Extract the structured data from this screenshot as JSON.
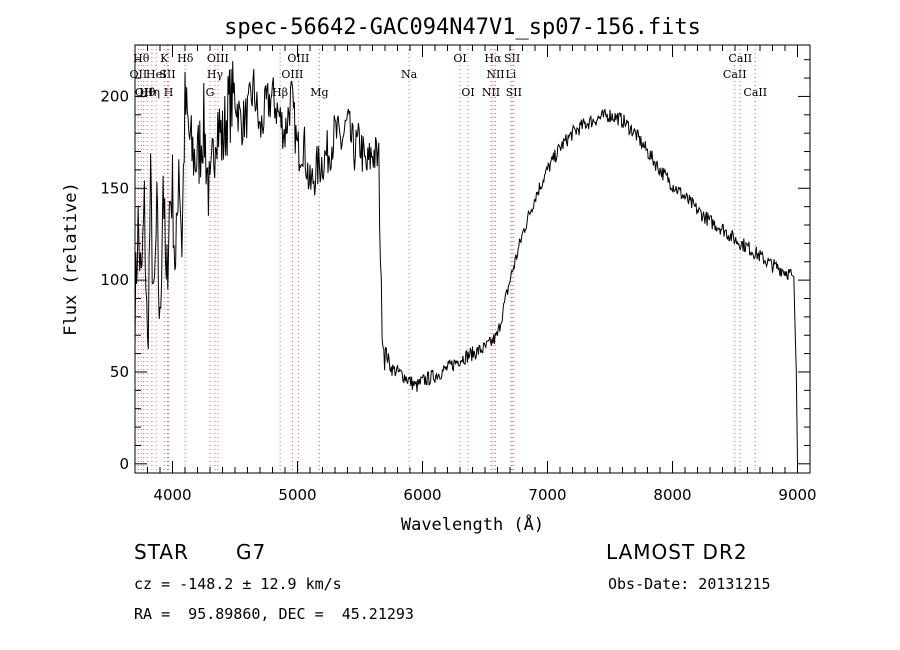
{
  "chart_data": {
    "type": "line",
    "title": "spec-56642-GAC094N47V1_sp07-156.fits",
    "xlabel": "Wavelength (Å)",
    "ylabel": "Flux (relative)",
    "xlim": [
      3700,
      9100
    ],
    "ylim": [
      -5,
      228
    ],
    "x_ticks": [
      4000,
      5000,
      6000,
      7000,
      8000,
      9000
    ],
    "y_ticks": [
      0,
      50,
      100,
      150,
      200
    ],
    "grid": false,
    "line_color": "#000000",
    "marker_color": "#e06060",
    "series": [
      {
        "x": [
          3700,
          3725,
          3750,
          3775,
          3800,
          3825,
          3850,
          3875,
          3900,
          3925,
          3950,
          3975,
          4000,
          4025,
          4050,
          4075,
          4100,
          4150,
          4200,
          4250,
          4300,
          4350,
          4400,
          4450,
          4500,
          4550,
          4600,
          4650,
          4700,
          4750,
          4800,
          4850,
          4900,
          4950,
          5000,
          5050,
          5100,
          5150,
          5200,
          5250,
          5300,
          5350,
          5400,
          5450,
          5500,
          5550,
          5600,
          5650,
          5670,
          5690,
          5710,
          5750,
          5800,
          5850,
          5900,
          5950,
          6000,
          6100,
          6200,
          6300,
          6400,
          6500,
          6550,
          6600,
          6650,
          6700,
          6800,
          6900,
          7000,
          7100,
          7200,
          7300,
          7400,
          7500,
          7600,
          7700,
          7800,
          7900,
          8000,
          8100,
          8200,
          8300,
          8400,
          8500,
          8600,
          8700,
          8800,
          8900,
          8970,
          8990,
          9000
        ],
        "y": [
          85,
          130,
          95,
          140,
          60,
          150,
          80,
          135,
          70,
          160,
          90,
          140,
          150,
          100,
          170,
          120,
          195,
          170,
          165,
          185,
          140,
          190,
          175,
          195,
          200,
          185,
          190,
          205,
          180,
          195,
          200,
          190,
          180,
          200,
          170,
          175,
          150,
          160,
          165,
          170,
          180,
          175,
          185,
          170,
          175,
          160,
          170,
          165,
          90,
          65,
          60,
          52,
          50,
          48,
          45,
          42,
          45,
          48,
          52,
          57,
          60,
          63,
          66,
          70,
          85,
          100,
          125,
          145,
          160,
          172,
          180,
          185,
          188,
          190,
          187,
          180,
          170,
          160,
          152,
          145,
          138,
          132,
          128,
          122,
          118,
          113,
          108,
          105,
          102,
          50,
          0
        ]
      }
    ],
    "lines": [
      {
        "wl": 3727,
        "label": "OII",
        "row": 2
      },
      {
        "wl": 3750,
        "label": "Hθ",
        "row": 1
      },
      {
        "wl": 3770,
        "label": "OII",
        "row": 3
      },
      {
        "wl": 3798,
        "label": "Hθ",
        "row": 3
      },
      {
        "wl": 3835,
        "label": "Hη",
        "row": 3
      },
      {
        "wl": 3870,
        "label": "HeI",
        "row": 2
      },
      {
        "wl": 3934,
        "label": "K",
        "row": 1
      },
      {
        "wl": 3960,
        "label": "SII",
        "row": 2
      },
      {
        "wl": 3968,
        "label": "H",
        "row": 3
      },
      {
        "wl": 4102,
        "label": "Hδ",
        "row": 1
      },
      {
        "wl": 4300,
        "label": "G",
        "row": 3
      },
      {
        "wl": 4340,
        "label": "Hγ",
        "row": 2
      },
      {
        "wl": 4363,
        "label": "OIII",
        "row": 1
      },
      {
        "wl": 4861,
        "label": "Hβ",
        "row": 3
      },
      {
        "wl": 4959,
        "label": "OIII",
        "row": 2
      },
      {
        "wl": 5007,
        "label": "OIII",
        "row": 1
      },
      {
        "wl": 5175,
        "label": "Mg",
        "row": 3
      },
      {
        "wl": 5893,
        "label": "Na",
        "row": 2
      },
      {
        "wl": 6300,
        "label": "OI",
        "row": 1
      },
      {
        "wl": 6364,
        "label": "OI",
        "row": 3
      },
      {
        "wl": 6548,
        "label": "NII",
        "row": 3
      },
      {
        "wl": 6563,
        "label": "Hα",
        "row": 1
      },
      {
        "wl": 6584,
        "label": "NII",
        "row": 2
      },
      {
        "wl": 6707,
        "label": "Li",
        "row": 2
      },
      {
        "wl": 6717,
        "label": "SII",
        "row": 1
      },
      {
        "wl": 6731,
        "label": "SII",
        "row": 3
      },
      {
        "wl": 8498,
        "label": "CaII",
        "row": 2
      },
      {
        "wl": 8542,
        "label": "CaII",
        "row": 1
      },
      {
        "wl": 8662,
        "label": "CaII",
        "row": 3
      }
    ]
  },
  "info": {
    "class_label": "STAR",
    "subclass": "G7",
    "survey": "LAMOST DR2",
    "cz_line": "cz = -148.2 ± 12.9 km/s",
    "obs_date": "Obs-Date: 20131215",
    "radec": "RA =  95.89860, DEC =  45.21293"
  }
}
